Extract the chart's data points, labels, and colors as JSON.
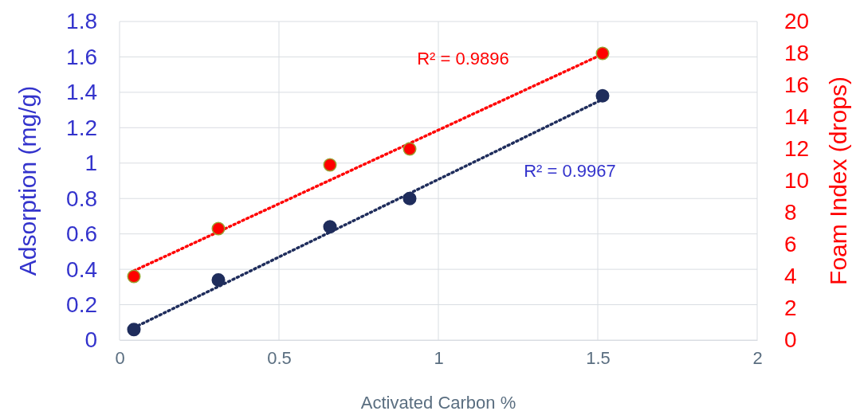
{
  "chart_data": {
    "type": "scatter",
    "xlabel": "Activated Carbon %",
    "ylabel": "Adsorption (mg/g)",
    "y2label": "Foam Index (drops)",
    "xlim": [
      0,
      2
    ],
    "xticks": [
      0,
      0.5,
      1,
      1.5,
      2
    ],
    "ylim": [
      0,
      1.8
    ],
    "yticks": [
      0,
      0.2,
      0.4,
      0.6,
      0.8,
      1,
      1.2,
      1.4,
      1.6,
      1.8
    ],
    "y2lim": [
      0,
      20
    ],
    "y2ticks": [
      0,
      2,
      4,
      6,
      8,
      10,
      12,
      14,
      16,
      18,
      20
    ],
    "grid": true,
    "marker": "circle",
    "series": [
      {
        "type": "line",
        "color": "#1f2d5c",
        "x": [
          0.045,
          1.515
        ],
        "values": [
          0.07,
          1.36
        ],
        "line_style": "dotted",
        "marker": "none"
      },
      {
        "type": "line",
        "color": "#ff0000",
        "x": [
          0.045,
          1.515
        ],
        "values": [
          4.35,
          17.95
        ],
        "line_style": "dotted",
        "marker": "none",
        "axis": "y2"
      },
      {
        "color": "#1f2d5c",
        "x": [
          0.045,
          0.31,
          0.66,
          0.91,
          1.515
        ],
        "values": [
          0.06,
          0.34,
          0.64,
          0.8,
          1.38
        ]
      },
      {
        "color": "#ff0000",
        "x": [
          0.045,
          0.31,
          0.66,
          0.91,
          1.515
        ],
        "values": [
          4,
          7,
          11,
          12,
          18
        ],
        "axis": "y2"
      }
    ],
    "annotations": [
      "R² = 0.9896",
      "R² = 0.9967"
    ]
  }
}
